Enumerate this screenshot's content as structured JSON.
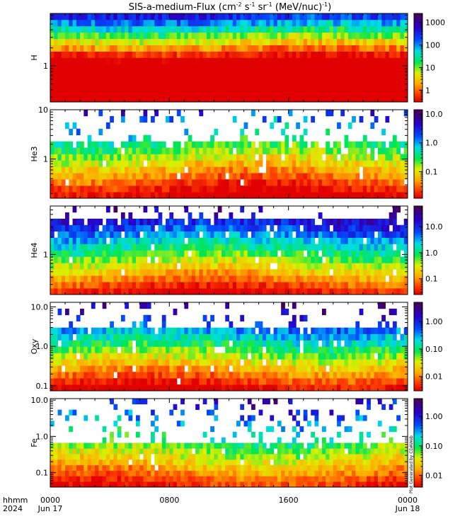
{
  "title": "SIS-a-medium-Flux (cm",
  "title_parts": {
    "pre": "SIS-a-medium-Flux (cm",
    "sup1": "-2",
    "mid1": " s",
    "sup2": "-1",
    "mid2": " sr",
    "sup3": "-1",
    "mid3": " (MeV/nuc)",
    "sup4": "-1",
    "post": ")"
  },
  "x_axis": {
    "row1_label": "hhmm",
    "row2_label": "2024",
    "ticks": [
      {
        "value": 0,
        "label": "0000",
        "date": "Jun 17"
      },
      {
        "value": 8,
        "label": "0800",
        "date": ""
      },
      {
        "value": 16,
        "label": "1600",
        "date": ""
      },
      {
        "value": 24,
        "label": "0000",
        "date": "Jun 18"
      }
    ],
    "range_hours": [
      0,
      24
    ],
    "minor_tick_hours": 1
  },
  "watermark": "Plot Generated by CDAWeb",
  "chart_data": [
    {
      "type": "heatmap",
      "panel": "H",
      "ylabel": "H",
      "yticks": [
        {
          "value": 1,
          "label": "1"
        }
      ],
      "y_log_range": [
        0.25,
        7.5
      ],
      "bins": 14,
      "cb_ticks": [
        {
          "value": 1,
          "label": "1"
        },
        {
          "value": 10,
          "label": "10"
        },
        {
          "value": 100,
          "label": "100"
        },
        {
          "value": 1000,
          "label": "1000"
        }
      ],
      "cb_range": [
        0.3,
        2500
      ],
      "profile_top": 300,
      "profile_bottom": 0.00022,
      "fill": 1.0
    },
    {
      "type": "heatmap",
      "panel": "He3",
      "ylabel": "He3",
      "yticks": [
        {
          "value": 1,
          "label": "1"
        },
        {
          "value": 10,
          "label": "10"
        }
      ],
      "y_log_range": [
        0.16,
        10
      ],
      "bins": 14,
      "cb_ticks": [
        {
          "value": 0.1,
          "label": "0.1"
        },
        {
          "value": 1,
          "label": "1.0"
        },
        {
          "value": 10,
          "label": "10.0"
        }
      ],
      "cb_range": [
        0.012,
        14
      ],
      "profile_top": 2.5,
      "profile_bottom": 0.01,
      "fill": 0.62
    },
    {
      "type": "heatmap",
      "panel": "He4",
      "ylabel": "He4",
      "yticks": [
        {
          "value": 1,
          "label": "1"
        }
      ],
      "y_log_range": [
        0.2,
        7
      ],
      "bins": 14,
      "cb_ticks": [
        {
          "value": 0.1,
          "label": "0.1"
        },
        {
          "value": 1,
          "label": "1.0"
        },
        {
          "value": 10,
          "label": "10.0"
        }
      ],
      "cb_range": [
        0.025,
        60
      ],
      "profile_top": 40,
      "profile_bottom": 0.03,
      "fill": 0.92
    },
    {
      "type": "heatmap",
      "panel": "Oxy",
      "ylabel": "Oxy",
      "yticks": [
        {
          "value": 0.1,
          "label": "0.1"
        },
        {
          "value": 1,
          "label": "1.0"
        },
        {
          "value": 10,
          "label": "10.0"
        }
      ],
      "y_log_range": [
        0.075,
        13
      ],
      "bins": 14,
      "cb_ticks": [
        {
          "value": 0.01,
          "label": "0.01"
        },
        {
          "value": 0.1,
          "label": "0.10"
        },
        {
          "value": 1,
          "label": "1.00"
        }
      ],
      "cb_range": [
        0.003,
        5
      ],
      "profile_top": 3,
      "profile_bottom": 0.003,
      "fill": 0.7
    },
    {
      "type": "heatmap",
      "panel": "Fe",
      "ylabel": "Fe",
      "yticks": [
        {
          "value": 0.1,
          "label": "0.1"
        },
        {
          "value": 1,
          "label": "1.0"
        },
        {
          "value": 10,
          "label": "10.0"
        }
      ],
      "y_log_range": [
        0.04,
        11
      ],
      "bins": 16,
      "cb_ticks": [
        {
          "value": 0.01,
          "label": "0.01"
        },
        {
          "value": 0.1,
          "label": "0.10"
        },
        {
          "value": 1,
          "label": "1.00"
        }
      ],
      "cb_range": [
        0.004,
        4
      ],
      "profile_top": 1.2,
      "profile_bottom": 0.006,
      "fill": 0.5
    }
  ]
}
